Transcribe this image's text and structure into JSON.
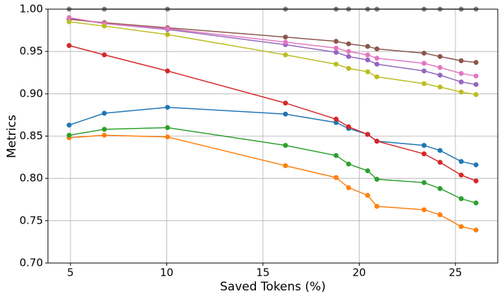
{
  "chart_data": {
    "type": "line",
    "x_label": "Saved Tokens (%)",
    "y_label": "Metrics",
    "x": [
      4.93,
      6.76,
      10.04,
      16.17,
      18.8,
      19.45,
      20.44,
      20.92,
      23.37,
      24.2,
      25.3,
      26.07
    ],
    "series": [
      {
        "color": "#1f77b4",
        "values": [
          0.863,
          0.877,
          0.884,
          0.876,
          0.866,
          0.859,
          0.852,
          0.844,
          0.839,
          0.833,
          0.82,
          0.816
        ]
      },
      {
        "color": "#ff7f0e",
        "values": [
          0.848,
          0.851,
          0.849,
          0.815,
          0.801,
          0.789,
          0.78,
          0.767,
          0.763,
          0.757,
          0.743,
          0.739
        ]
      },
      {
        "color": "#2ca02c",
        "values": [
          0.851,
          0.858,
          0.86,
          0.839,
          0.827,
          0.817,
          0.809,
          0.799,
          0.795,
          0.788,
          0.776,
          0.771
        ]
      },
      {
        "color": "#d62728",
        "values": [
          0.957,
          0.946,
          0.927,
          0.889,
          0.87,
          0.861,
          0.852,
          0.844,
          0.829,
          0.819,
          0.804,
          0.797
        ]
      },
      {
        "color": "#9467bd",
        "values": [
          0.989,
          0.983,
          0.976,
          0.958,
          0.949,
          0.944,
          0.94,
          0.935,
          0.927,
          0.922,
          0.914,
          0.911
        ]
      },
      {
        "color": "#8c564b",
        "values": [
          0.988,
          0.984,
          0.978,
          0.967,
          0.962,
          0.959,
          0.956,
          0.953,
          0.948,
          0.944,
          0.939,
          0.937
        ]
      },
      {
        "color": "#e377c2",
        "values": [
          0.99,
          0.983,
          0.977,
          0.961,
          0.954,
          0.95,
          0.946,
          0.942,
          0.936,
          0.931,
          0.924,
          0.921
        ]
      },
      {
        "color": "#7f7f7f",
        "values": [
          1,
          1,
          1,
          1,
          1,
          1,
          1,
          1,
          1,
          1,
          1,
          1
        ]
      },
      {
        "color": "#bcbd22",
        "values": [
          0.985,
          0.98,
          0.97,
          0.946,
          0.935,
          0.93,
          0.926,
          0.92,
          0.912,
          0.908,
          0.902,
          0.899
        ]
      }
    ],
    "xlim": [
      3.83,
      27.2
    ],
    "xticks": [
      5,
      10,
      15,
      20,
      25
    ],
    "ylim": [
      0.7,
      1.0
    ],
    "yticks": [
      {
        "value": 0.7,
        "label": "0.70"
      },
      0.75,
      {
        "value": 0.8,
        "label": "0.80"
      },
      0.85,
      {
        "value": 0.9,
        "label": "0.90"
      },
      0.95,
      {
        "value": 1.0,
        "label": "1.00"
      }
    ],
    "grid": true
  }
}
